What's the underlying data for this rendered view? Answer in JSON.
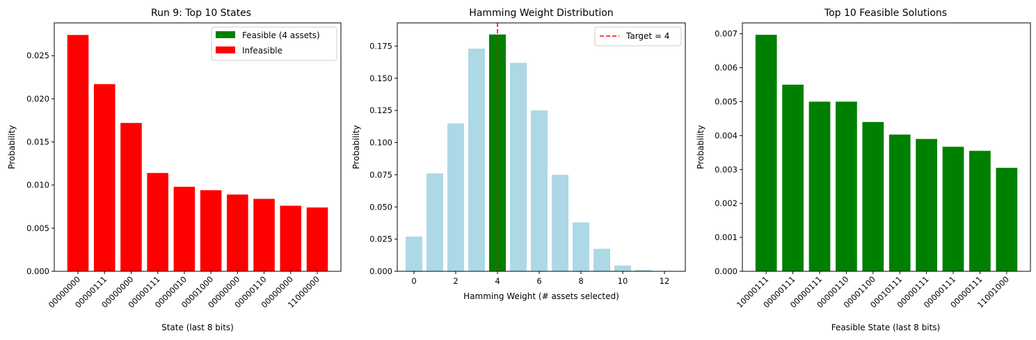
{
  "chart_data": [
    {
      "type": "bar",
      "title": "Run 9: Top 10 States",
      "xlabel": "State (last 8 bits)",
      "ylabel": "Probability",
      "categories": [
        "00000000",
        "00000111",
        "00000000",
        "00000111",
        "00000010",
        "00001000",
        "00000000",
        "00000110",
        "00000000",
        "11000000"
      ],
      "values": [
        0.0274,
        0.0217,
        0.0172,
        0.0114,
        0.0098,
        0.0094,
        0.0089,
        0.0084,
        0.0076,
        0.0074
      ],
      "bar_color": "#ff0000",
      "ylim": [
        0,
        0.0288
      ],
      "yticks": [
        "0.000",
        "0.005",
        "0.010",
        "0.015",
        "0.020",
        "0.025"
      ],
      "legend": {
        "placement": "top-right",
        "entries": [
          {
            "label": "Feasible (4 assets)",
            "color": "#008000"
          },
          {
            "label": "Infeasible",
            "color": "#ff0000"
          }
        ]
      }
    },
    {
      "type": "bar",
      "title": "Hamming Weight Distribution",
      "xlabel": "Hamming Weight (# assets selected)",
      "ylabel": "Probability",
      "x": [
        0,
        1,
        2,
        3,
        4,
        5,
        6,
        7,
        8,
        9,
        10,
        11,
        12
      ],
      "values": [
        0.027,
        0.076,
        0.115,
        0.173,
        0.184,
        0.162,
        0.125,
        0.075,
        0.038,
        0.0175,
        0.0045,
        0.001,
        0.0002
      ],
      "colors": [
        "#add8e6",
        "#add8e6",
        "#add8e6",
        "#add8e6",
        "#008000",
        "#add8e6",
        "#add8e6",
        "#add8e6",
        "#add8e6",
        "#add8e6",
        "#add8e6",
        "#add8e6",
        "#add8e6"
      ],
      "xlim": [
        -0.8,
        13.0
      ],
      "ylim": [
        0,
        0.193
      ],
      "xticks": [
        "0",
        "2",
        "4",
        "6",
        "8",
        "10",
        "12"
      ],
      "yticks": [
        "0.000",
        "0.025",
        "0.050",
        "0.075",
        "0.100",
        "0.125",
        "0.150",
        "0.175"
      ],
      "target_line": {
        "x": 4,
        "color": "#ff0000",
        "style": "dashed"
      },
      "legend": {
        "placement": "top-right",
        "entries": [
          {
            "label": "Target = 4",
            "color": "#ff0000",
            "style": "dashed-line"
          }
        ]
      }
    },
    {
      "type": "bar",
      "title": "Top 10 Feasible Solutions",
      "xlabel": "Feasible State (last 8 bits)",
      "ylabel": "Probability",
      "categories": [
        "10000111",
        "00000111",
        "00000111",
        "00000110",
        "00001100",
        "00010111",
        "00000111",
        "00000111",
        "00000111",
        "11001000"
      ],
      "values": [
        0.00697,
        0.0055,
        0.005,
        0.005,
        0.0044,
        0.00403,
        0.0039,
        0.00367,
        0.00355,
        0.00305
      ],
      "bar_color": "#008000",
      "ylim": [
        0,
        0.00732
      ],
      "yticks": [
        "0.000",
        "0.001",
        "0.002",
        "0.003",
        "0.004",
        "0.005",
        "0.006",
        "0.007"
      ]
    }
  ]
}
